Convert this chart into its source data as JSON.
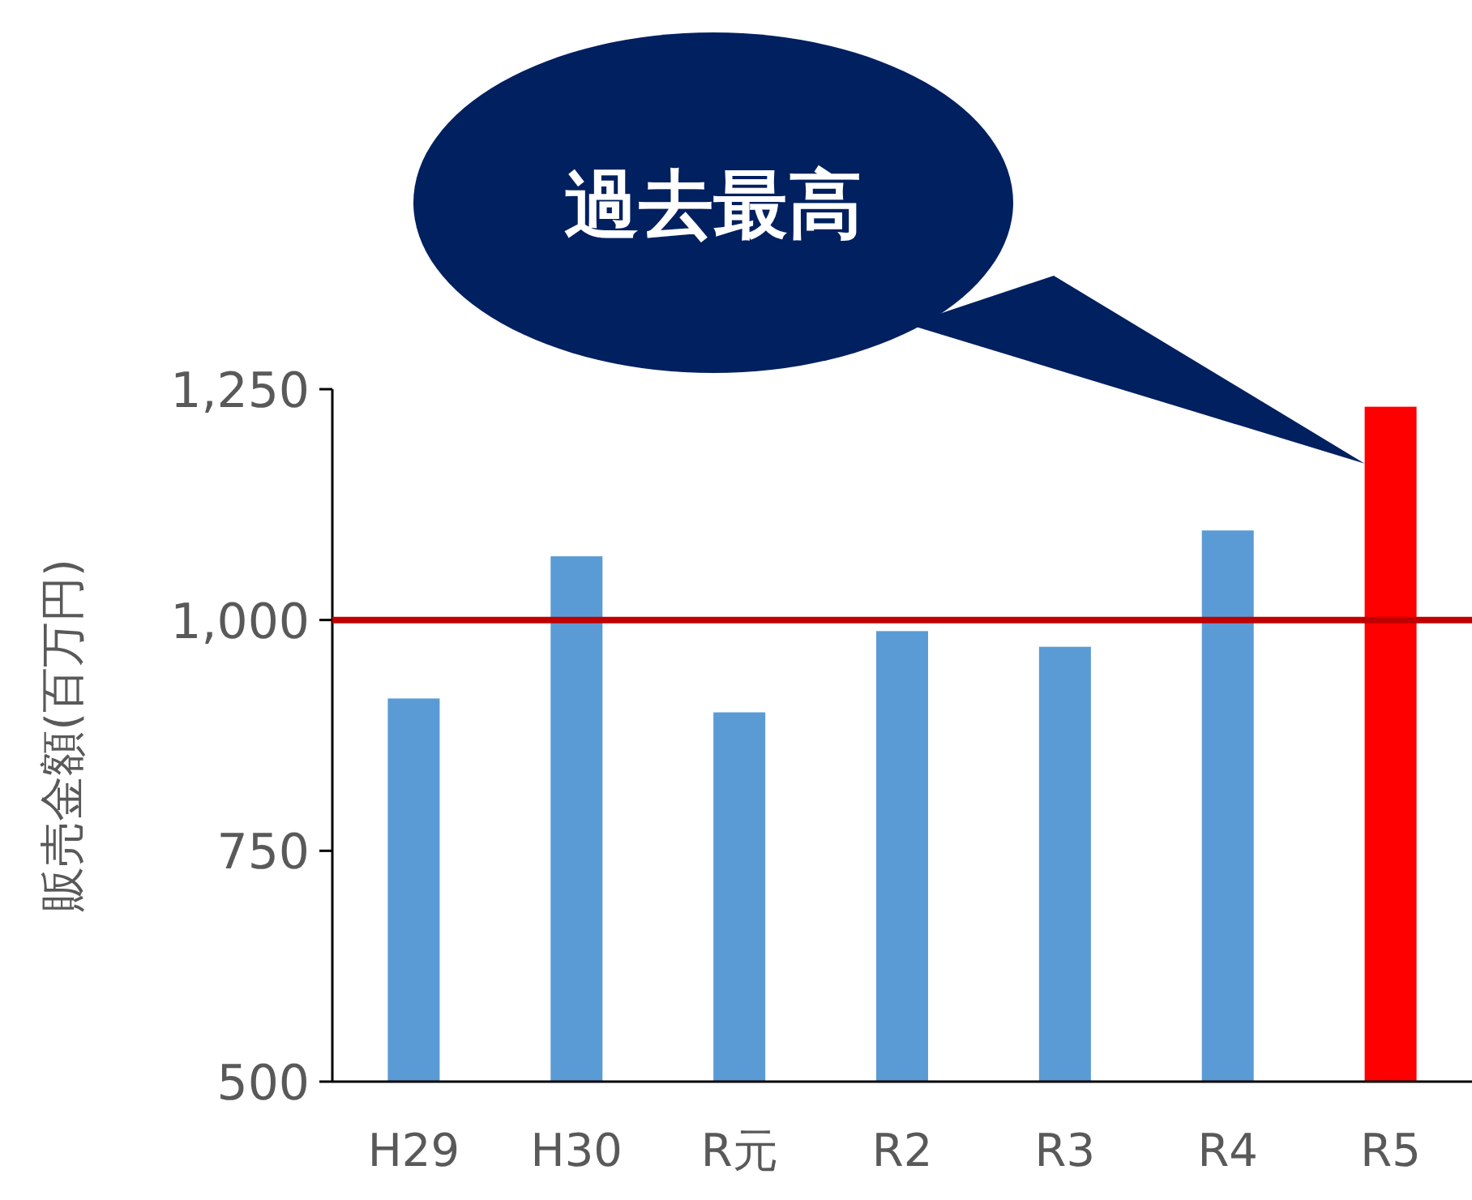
{
  "chart_data": {
    "type": "bar",
    "ylabel": "販売金額(百万円)",
    "categories": [
      "H29",
      "H30",
      "R元",
      "R2",
      "R3",
      "R4",
      "R5"
    ],
    "values": [
      915,
      1069,
      900,
      988,
      971,
      1097,
      1231
    ],
    "colors": [
      "#5b9bd5",
      "#5b9bd5",
      "#5b9bd5",
      "#5b9bd5",
      "#5b9bd5",
      "#5b9bd5",
      "#ff0000"
    ],
    "ylim": [
      500,
      1250
    ],
    "yticks": [
      500,
      750,
      {
        "value": 1000,
        "label": "1,000"
      },
      {
        "value": 1250,
        "label": "1,250"
      }
    ],
    "ref_lines": [
      {
        "axis": "y",
        "value": 1000,
        "color": "#c00000"
      }
    ],
    "annotations": [
      "過去最高"
    ],
    "grid": false
  }
}
